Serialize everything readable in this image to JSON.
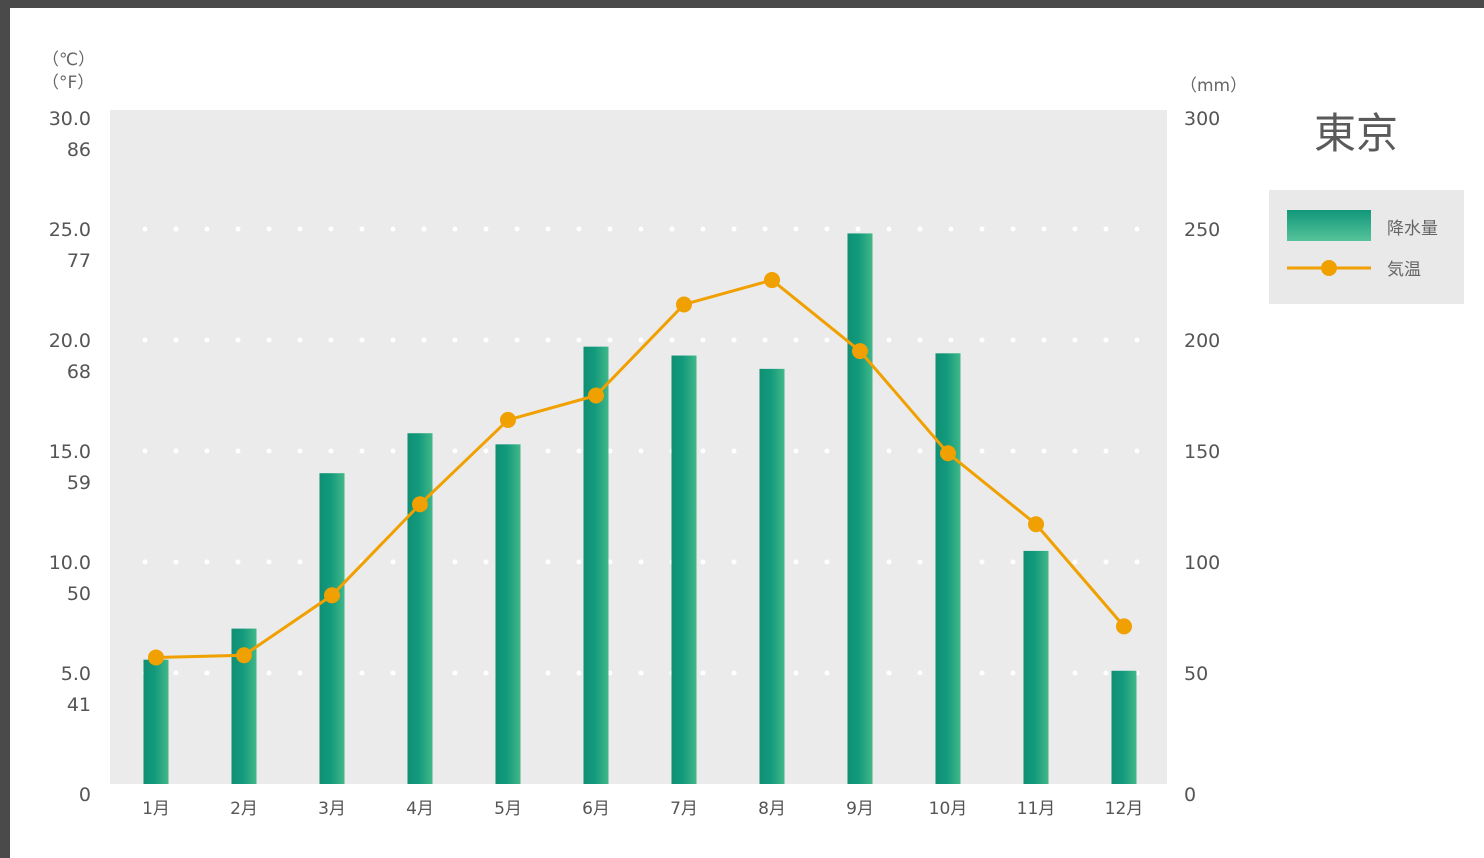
{
  "chart_data": {
    "type": "bar",
    "title": "東京",
    "categories": [
      "1月",
      "2月",
      "3月",
      "4月",
      "5月",
      "6月",
      "7月",
      "8月",
      "9月",
      "10月",
      "11月",
      "12月"
    ],
    "series": [
      {
        "name": "降水量",
        "type": "bar",
        "axis": "right",
        "values": [
          56,
          70,
          140,
          158,
          153,
          197,
          193,
          187,
          248,
          194,
          105,
          51
        ],
        "color": "#139a7c"
      },
      {
        "name": "気温",
        "type": "line",
        "axis": "left",
        "values": [
          5.7,
          5.8,
          8.5,
          12.6,
          16.4,
          17.5,
          21.6,
          22.7,
          19.5,
          14.9,
          11.7,
          7.1
        ],
        "color": "#f0a000"
      }
    ],
    "left_axis": {
      "unit_c": "（℃）",
      "unit_f": "（°F）",
      "ticks_c": [
        "0",
        "5.0",
        "10.0",
        "15.0",
        "20.0",
        "25.0",
        "30.0"
      ],
      "ticks_f": [
        "",
        "41",
        "50",
        "59",
        "68",
        "77",
        "86"
      ],
      "range": [
        0,
        30
      ]
    },
    "right_axis": {
      "unit": "（mm）",
      "ticks": [
        "0",
        "50",
        "100",
        "150",
        "200",
        "250",
        "300"
      ],
      "range": [
        0,
        300
      ]
    },
    "grid": "dotted",
    "legend_position": "top-right",
    "legend": [
      "降水量",
      "気温"
    ],
    "colors": {
      "plot_background": "#ebebeb",
      "legend_background": "#e9e9e9",
      "bar": "#139a7c",
      "line": "#f0a000"
    }
  }
}
